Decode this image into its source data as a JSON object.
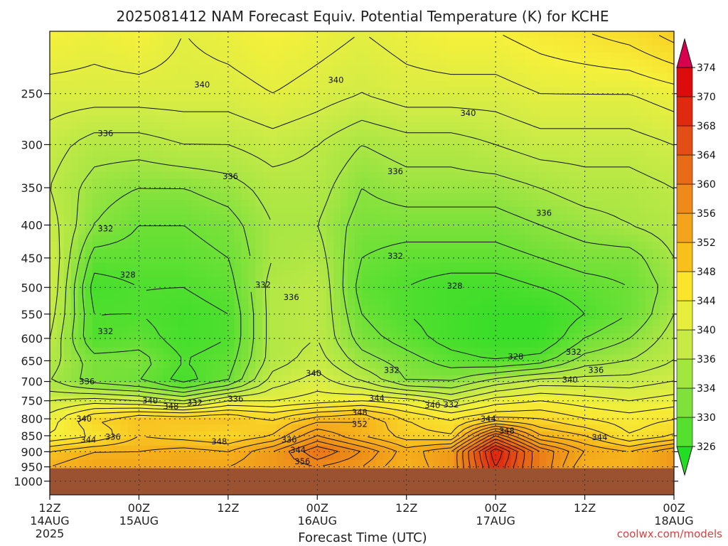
{
  "chart_data": {
    "type": "heatmap",
    "title": "2025081412 NAM Forecast Equiv. Potential Temperature (K) for KCHE",
    "xlabel": "Forecast Time (UTC)",
    "credit": "coolwx.com/models",
    "y_axis": {
      "scale": "log-pressure",
      "range": [
        1050,
        200
      ],
      "ticks": [
        250,
        300,
        350,
        400,
        450,
        500,
        550,
        600,
        650,
        700,
        750,
        800,
        850,
        900,
        950,
        1000
      ]
    },
    "x_axis": {
      "range_hours": [
        0,
        84
      ],
      "ticks": [
        {
          "hour": 0,
          "label": "12Z",
          "sub": "14AUG",
          "sub2": "2025"
        },
        {
          "hour": 12,
          "label": "00Z",
          "sub": "15AUG",
          "sub2": ""
        },
        {
          "hour": 24,
          "label": "12Z",
          "sub": "",
          "sub2": ""
        },
        {
          "hour": 36,
          "label": "00Z",
          "sub": "16AUG",
          "sub2": ""
        },
        {
          "hour": 48,
          "label": "12Z",
          "sub": "",
          "sub2": ""
        },
        {
          "hour": 60,
          "label": "00Z",
          "sub": "17AUG",
          "sub2": ""
        },
        {
          "hour": 72,
          "label": "12Z",
          "sub": "",
          "sub2": ""
        },
        {
          "hour": 84,
          "label": "00Z",
          "sub": "18AUG",
          "sub2": ""
        }
      ]
    },
    "grid": true,
    "surface_pressure": 955,
    "colorbar": {
      "levels": [
        326,
        330,
        334,
        336,
        340,
        344,
        348,
        352,
        356,
        360,
        364,
        368,
        370,
        374
      ],
      "colors": [
        "#22dd22",
        "#55e030",
        "#7ee23a",
        "#a2e640",
        "#c8ea44",
        "#e8ee3c",
        "#fbe52a",
        "#f9c01c",
        "#f3a41c",
        "#ee8a1a",
        "#e86c18",
        "#e34d16",
        "#e02a10",
        "#dc0c0c",
        "#d8004e"
      ]
    },
    "color_stops": [
      {
        "value": 326,
        "color": "#22dd22"
      },
      {
        "value": 330,
        "color": "#50df2e"
      },
      {
        "value": 334,
        "color": "#8ae23e"
      },
      {
        "value": 336,
        "color": "#a9e644"
      },
      {
        "value": 340,
        "color": "#d2ec46"
      },
      {
        "value": 344,
        "color": "#f6f03a"
      },
      {
        "value": 348,
        "color": "#f9d628"
      },
      {
        "value": 352,
        "color": "#f6b21c"
      },
      {
        "value": 356,
        "color": "#f09a1a"
      },
      {
        "value": 360,
        "color": "#ea7e18"
      },
      {
        "value": 364,
        "color": "#e55e16"
      },
      {
        "value": 368,
        "color": "#e03c12"
      },
      {
        "value": 374,
        "color": "#dc0c0c"
      }
    ],
    "field_grid": {
      "hours": [
        0,
        6,
        12,
        18,
        24,
        30,
        36,
        42,
        48,
        54,
        60,
        66,
        72,
        78,
        84
      ],
      "pressures": [
        200,
        250,
        300,
        350,
        400,
        450,
        500,
        550,
        600,
        650,
        700,
        750,
        800,
        850,
        900,
        950
      ],
      "values": [
        [
          344,
          343,
          344,
          342,
          343,
          344,
          343,
          342,
          343,
          344,
          344,
          345,
          346,
          347,
          349
        ],
        [
          341,
          341,
          341,
          341,
          341,
          342,
          341,
          340,
          341,
          341,
          341,
          342,
          342,
          342,
          343
        ],
        [
          339,
          337,
          337,
          338,
          338,
          339,
          338,
          336,
          337,
          337,
          338,
          339,
          339,
          339,
          340
        ],
        [
          338,
          335,
          334,
          334,
          335,
          337,
          337,
          334,
          335,
          335,
          335,
          336,
          337,
          337,
          338
        ],
        [
          339,
          334,
          332,
          332,
          333,
          336,
          336,
          333,
          333,
          333,
          333,
          334,
          335,
          336,
          337
        ],
        [
          340,
          331,
          331,
          331,
          332,
          336,
          337,
          332,
          331,
          331,
          331,
          332,
          333,
          333,
          336
        ],
        [
          340,
          329,
          330,
          330,
          331,
          337,
          338,
          331,
          330,
          329,
          329,
          330,
          331,
          332,
          335
        ],
        [
          339,
          330,
          330,
          329,
          330,
          337,
          338,
          332,
          330,
          329,
          328,
          328,
          330,
          332,
          336
        ],
        [
          338,
          330,
          331,
          329,
          330,
          337,
          338,
          333,
          331,
          329,
          328,
          328,
          332,
          334,
          337
        ],
        [
          337,
          333,
          333,
          330,
          331,
          337,
          339,
          335,
          333,
          331,
          330,
          331,
          335,
          336,
          338
        ],
        [
          336,
          333,
          332,
          329,
          332,
          339,
          341,
          338,
          334,
          334,
          337,
          339,
          339,
          339,
          340
        ],
        [
          340,
          341,
          340,
          338,
          342,
          342,
          343,
          344,
          343,
          340,
          343,
          344,
          343,
          342,
          343
        ],
        [
          343,
          348,
          350,
          350,
          350,
          348,
          351,
          352,
          348,
          346,
          348,
          348,
          346,
          345,
          346
        ],
        [
          344,
          346,
          350,
          349,
          348,
          350,
          356,
          352,
          349,
          348,
          362,
          352,
          350,
          346,
          348
        ],
        [
          350,
          352,
          352,
          353,
          352,
          356,
          362,
          358,
          353,
          356,
          372,
          360,
          354,
          352,
          356
        ],
        [
          352,
          354,
          354,
          354,
          354,
          356,
          358,
          356,
          352,
          356,
          370,
          360,
          352,
          352,
          356
        ]
      ]
    },
    "contour_labels": [
      {
        "text": "340",
        "hour": 20.5,
        "pressure": 242
      },
      {
        "text": "340",
        "hour": 38.5,
        "pressure": 238
      },
      {
        "text": "340",
        "hour": 56.3,
        "pressure": 268
      },
      {
        "text": "336",
        "hour": 7.5,
        "pressure": 288
      },
      {
        "text": "336",
        "hour": 24.3,
        "pressure": 336
      },
      {
        "text": "336",
        "hour": 46.5,
        "pressure": 330
      },
      {
        "text": "336",
        "hour": 66.5,
        "pressure": 383
      },
      {
        "text": "332",
        "hour": 7.5,
        "pressure": 405
      },
      {
        "text": "332",
        "hour": 46.5,
        "pressure": 447
      },
      {
        "text": "332",
        "hour": 28.7,
        "pressure": 495
      },
      {
        "text": "332",
        "hour": 7.5,
        "pressure": 585
      },
      {
        "text": "332",
        "hour": 70.5,
        "pressure": 630
      },
      {
        "text": "332",
        "hour": 46,
        "pressure": 672
      },
      {
        "text": "332",
        "hour": 54,
        "pressure": 760
      },
      {
        "text": "332",
        "hour": 19.5,
        "pressure": 755
      },
      {
        "text": "328",
        "hour": 10.5,
        "pressure": 478
      },
      {
        "text": "328",
        "hour": 54.5,
        "pressure": 497
      },
      {
        "text": "328",
        "hour": 62.7,
        "pressure": 640
      },
      {
        "text": "336",
        "hour": 32.5,
        "pressure": 518
      },
      {
        "text": "340",
        "hour": 35.5,
        "pressure": 680
      },
      {
        "text": "336",
        "hour": 5,
        "pressure": 700
      },
      {
        "text": "340",
        "hour": 13.5,
        "pressure": 750
      },
      {
        "text": "348",
        "hour": 16.3,
        "pressure": 765
      },
      {
        "text": "336",
        "hour": 25,
        "pressure": 745
      },
      {
        "text": "344",
        "hour": 44,
        "pressure": 743
      },
      {
        "text": "340",
        "hour": 51.5,
        "pressure": 762
      },
      {
        "text": "348",
        "hour": 41.7,
        "pressure": 782
      },
      {
        "text": "352",
        "hour": 41.7,
        "pressure": 815
      },
      {
        "text": "340",
        "hour": 4.6,
        "pressure": 800
      },
      {
        "text": "344",
        "hour": 5.2,
        "pressure": 862
      },
      {
        "text": "336",
        "hour": 8.5,
        "pressure": 853
      },
      {
        "text": "348",
        "hour": 22.8,
        "pressure": 868
      },
      {
        "text": "336",
        "hour": 32.2,
        "pressure": 862
      },
      {
        "text": "344",
        "hour": 33.4,
        "pressure": 895
      },
      {
        "text": "356",
        "hour": 34,
        "pressure": 932
      },
      {
        "text": "344",
        "hour": 59,
        "pressure": 800
      },
      {
        "text": "348",
        "hour": 61.5,
        "pressure": 835
      },
      {
        "text": "340",
        "hour": 70,
        "pressure": 695
      },
      {
        "text": "336",
        "hour": 73.5,
        "pressure": 672
      },
      {
        "text": "344",
        "hour": 74,
        "pressure": 855
      }
    ]
  }
}
